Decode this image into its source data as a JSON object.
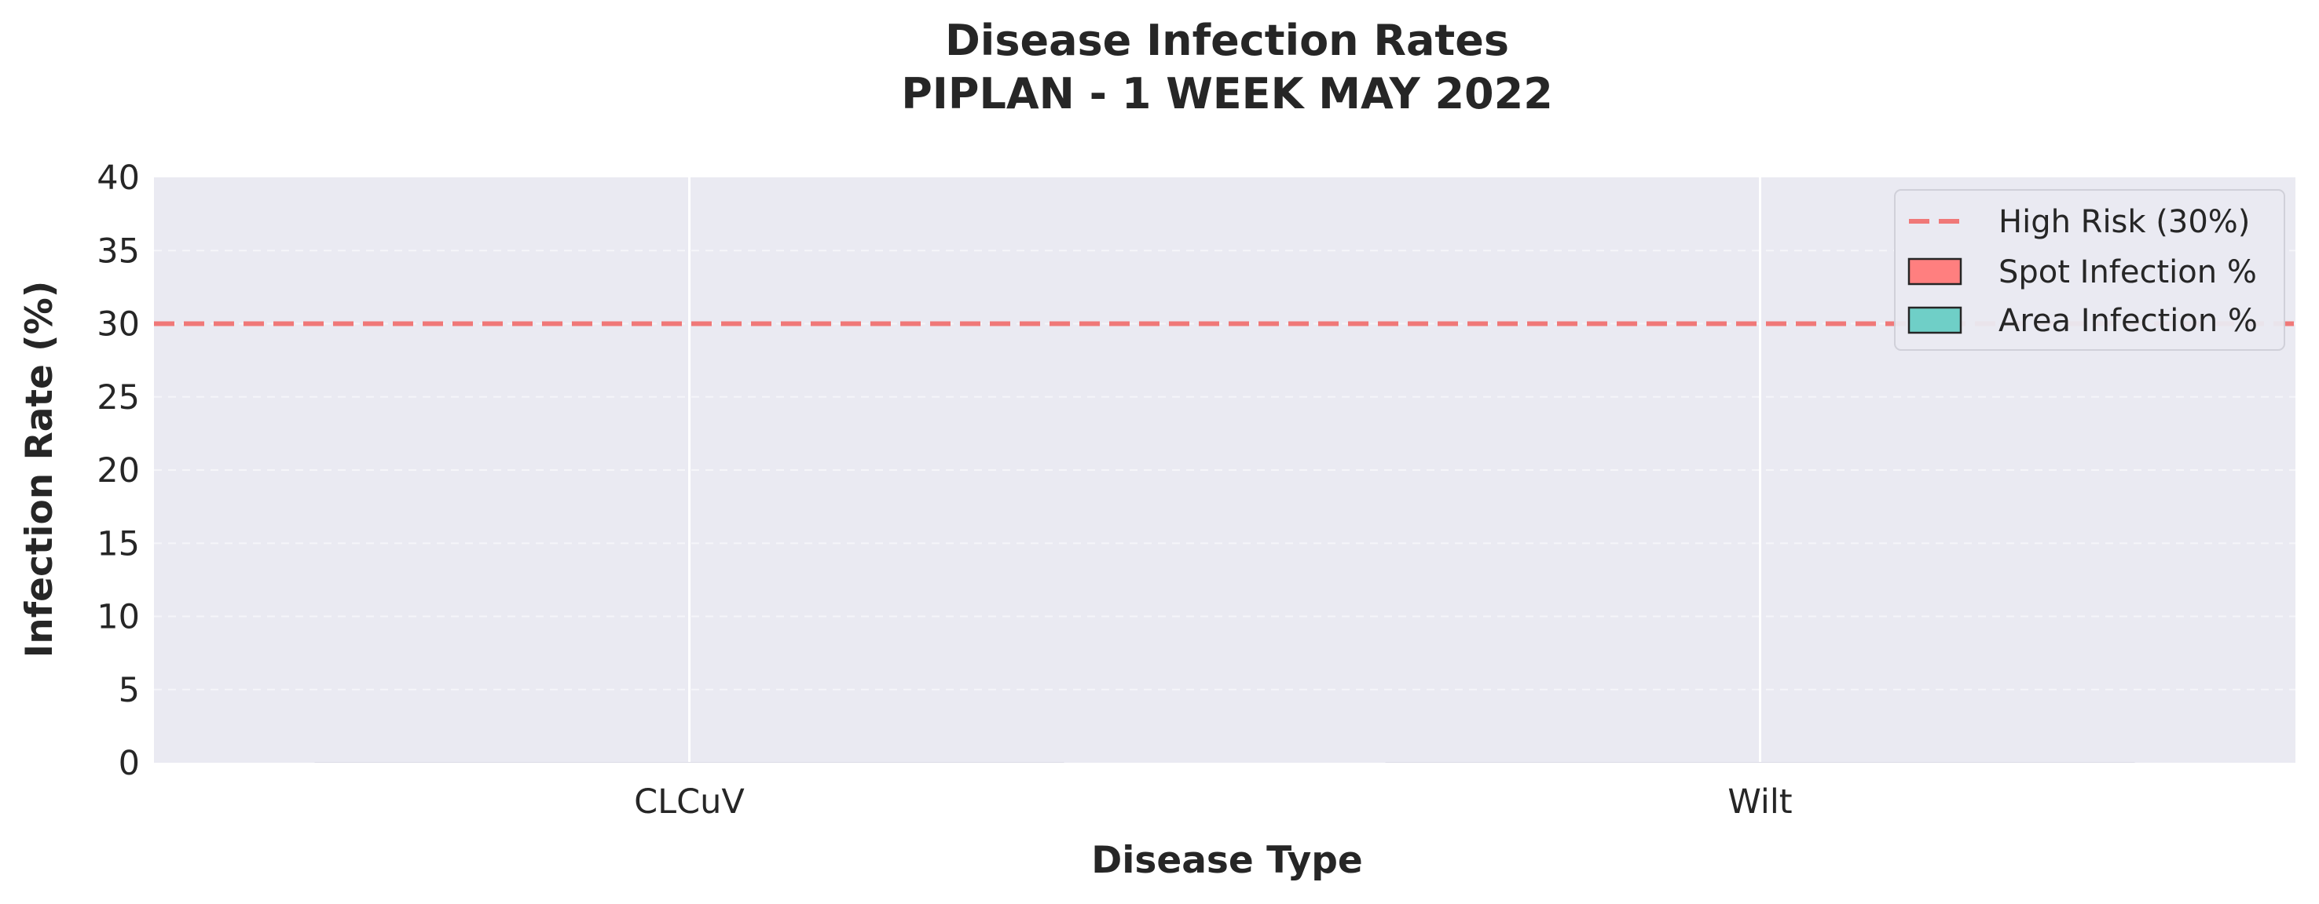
{
  "chart_data": {
    "type": "bar",
    "title": "Disease Infection Rates",
    "subtitle": "PIPLAN - 1 WEEK MAY 2022",
    "xlabel": "Disease Type",
    "ylabel": "Infection Rate (%)",
    "categories": [
      "CLCuV",
      "Wilt"
    ],
    "series": [
      {
        "name": "Spot Infection %",
        "values": [
          0,
          0
        ],
        "color": "#ff7f7f"
      },
      {
        "name": "Area Infection %",
        "values": [
          0,
          0
        ],
        "color": "#6fcfc7"
      }
    ],
    "ylim": [
      0,
      40
    ],
    "yticks": [
      0,
      5,
      10,
      15,
      20,
      25,
      30,
      35,
      40
    ],
    "reference_line": {
      "label": "High Risk (30%)",
      "value": 30,
      "color": "#f07878",
      "style": "dashed"
    },
    "grid": true,
    "legend_position": "top-right",
    "background_color": "#eaeaf2"
  }
}
